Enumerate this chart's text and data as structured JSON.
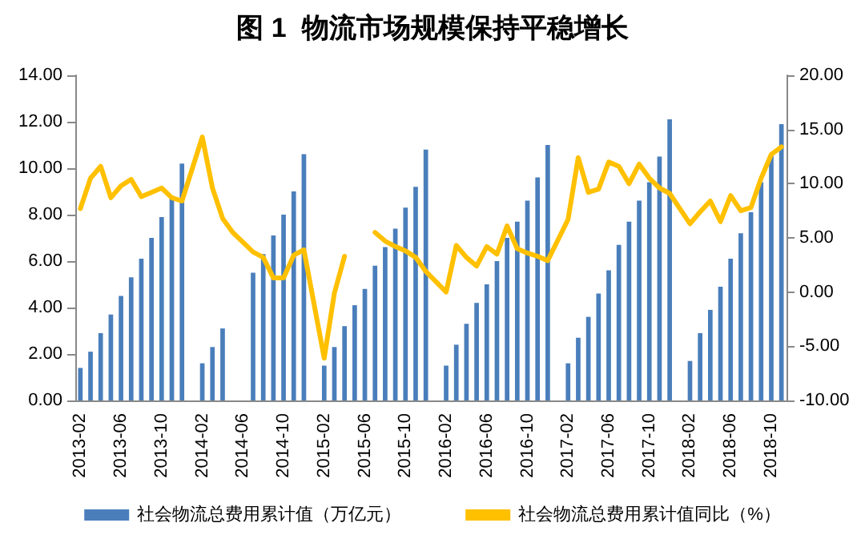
{
  "chart_data": {
    "type": "bar",
    "title": "图 1  物流市场规模保持平稳增长",
    "categories": [
      "2013-02",
      null,
      null,
      null,
      "2013-06",
      null,
      null,
      null,
      "2013-10",
      null,
      null,
      null,
      "2014-02",
      null,
      null,
      null,
      "2014-06",
      null,
      null,
      null,
      "2014-10",
      null,
      null,
      null,
      "2015-02",
      null,
      null,
      null,
      "2015-06",
      null,
      null,
      null,
      "2015-10",
      null,
      null,
      null,
      "2016-02",
      null,
      null,
      null,
      "2016-06",
      null,
      null,
      null,
      "2016-10",
      null,
      null,
      null,
      "2017-02",
      null,
      null,
      null,
      "2017-06",
      null,
      null,
      null,
      "2017-10",
      null,
      null,
      null,
      "2018-02",
      null,
      null,
      null,
      "2018-06",
      null,
      null,
      null,
      "2018-10",
      null
    ],
    "series": [
      {
        "name": "社会物流总费用累计值（万亿元）",
        "color": "#4a7ebb",
        "values": [
          1.4,
          2.1,
          2.9,
          3.7,
          4.5,
          5.3,
          6.1,
          7.0,
          7.9,
          8.8,
          10.2,
          null,
          1.6,
          2.3,
          3.1,
          null,
          null,
          5.5,
          6.3,
          7.1,
          8.0,
          9.0,
          10.6,
          null,
          1.5,
          2.3,
          3.2,
          4.1,
          4.8,
          5.8,
          6.6,
          7.4,
          8.3,
          9.2,
          10.8,
          null,
          1.5,
          2.4,
          3.3,
          4.2,
          5.0,
          6.0,
          7.0,
          7.7,
          8.6,
          9.6,
          11.0,
          null,
          1.6,
          2.7,
          3.6,
          4.6,
          5.6,
          6.7,
          7.7,
          8.6,
          9.4,
          10.5,
          12.1,
          null,
          1.7,
          2.9,
          3.9,
          4.9,
          6.1,
          7.2,
          8.1,
          9.4,
          10.6,
          11.9
        ]
      },
      {
        "name": "社会物流总费用累计值同比（%）",
        "type": "line",
        "axis": "y2",
        "color": "#ffc000",
        "values": [
          7.7,
          10.5,
          11.6,
          8.7,
          9.8,
          10.4,
          8.8,
          9.2,
          9.6,
          8.7,
          8.4,
          null,
          14.3,
          9.6,
          6.8,
          5.5,
          4.6,
          3.7,
          3.2,
          1.3,
          1.3,
          3.4,
          3.9,
          null,
          -6.1,
          -0.1,
          3.3,
          null,
          null,
          5.5,
          4.7,
          4.2,
          3.8,
          3.2,
          1.9,
          null,
          0.0,
          4.3,
          3.2,
          2.4,
          4.2,
          3.5,
          6.1,
          4.0,
          3.6,
          3.3,
          2.9,
          null,
          6.7,
          12.4,
          9.2,
          9.5,
          12.0,
          11.6,
          10.0,
          11.8,
          10.5,
          9.6,
          9.1,
          null,
          6.3,
          7.4,
          8.4,
          6.5,
          8.9,
          7.5,
          7.8,
          10.5,
          12.7,
          13.4
        ]
      }
    ],
    "ylim": [
      0,
      14
    ],
    "yticks": [
      {
        "value": 0,
        "label": "0.00"
      },
      {
        "value": 2,
        "label": "2.00"
      },
      {
        "value": 4,
        "label": "4.00"
      },
      {
        "value": 6,
        "label": "6.00"
      },
      {
        "value": 8,
        "label": "8.00"
      },
      {
        "value": 10,
        "label": "10.00"
      },
      {
        "value": 12,
        "label": "12.00"
      },
      {
        "value": 14,
        "label": "14.00"
      }
    ],
    "y2lim": [
      -10,
      20
    ],
    "y2ticks": [
      {
        "value": -10,
        "label": "-10.00"
      },
      {
        "value": -5,
        "label": "-5.00"
      },
      {
        "value": 0,
        "label": "0.00"
      },
      {
        "value": 5,
        "label": "5.00"
      },
      {
        "value": 10,
        "label": "10.00"
      },
      {
        "value": 15,
        "label": "15.00"
      },
      {
        "value": 20,
        "label": "20.00"
      }
    ],
    "legend": "bottom",
    "grid": false,
    "marker": "none",
    "line_style": "solid"
  }
}
